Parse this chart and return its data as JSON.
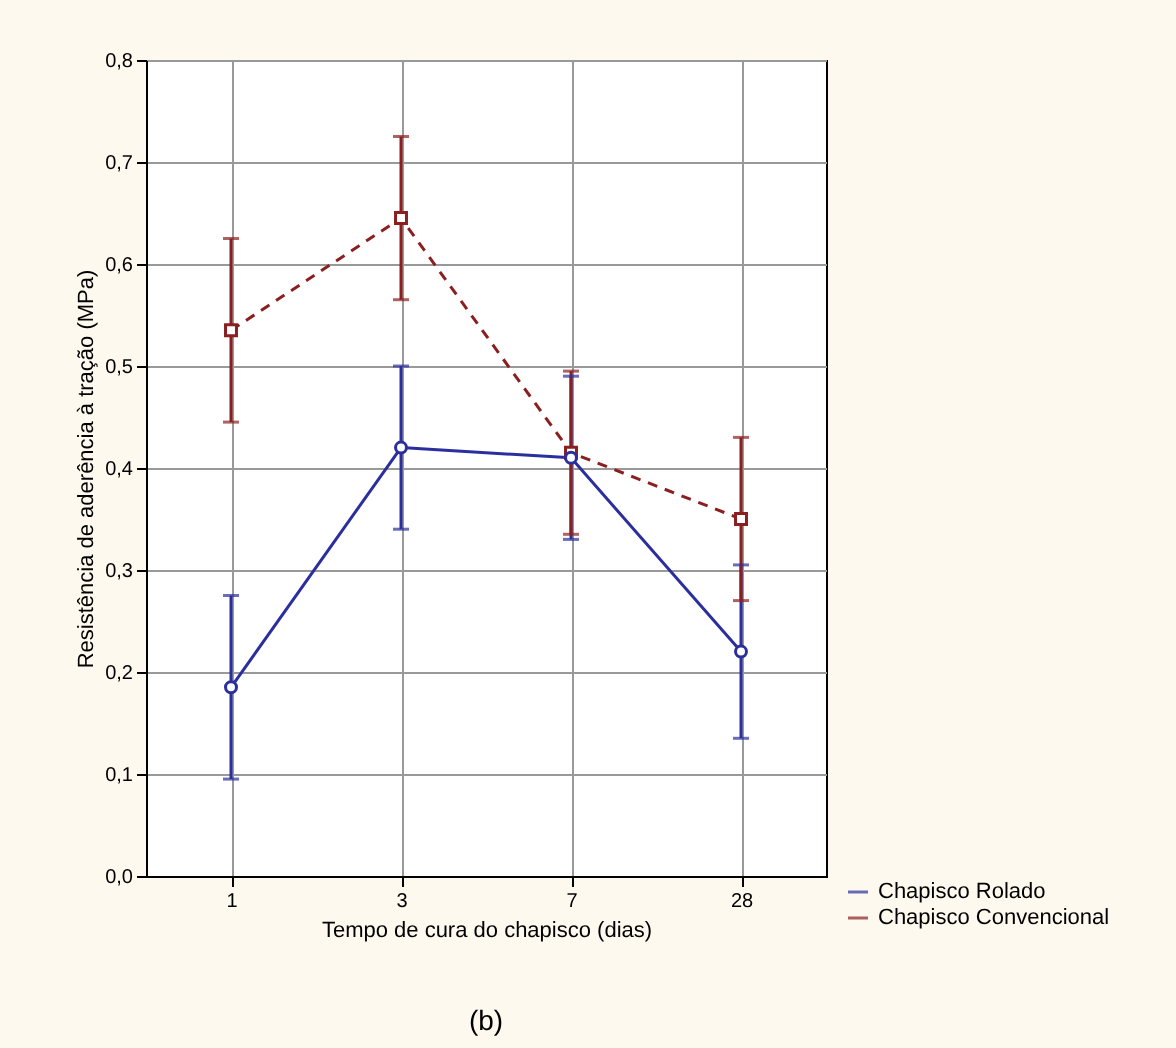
{
  "chart_data": {
    "type": "line",
    "xlabel": "Tempo de cura do chapisco (dias)",
    "ylabel": "Resistência de aderência à tração (MPa)",
    "categories": [
      "1",
      "3",
      "7",
      "28"
    ],
    "series": [
      {
        "name": "Chapisco Rolado",
        "color": "#2b2f9e",
        "marker": "circle",
        "line_style": "solid",
        "values": [
          0.185,
          0.42,
          0.41,
          0.22
        ],
        "errors": [
          0.09,
          0.08,
          0.08,
          0.085
        ]
      },
      {
        "name": "Chapisco Convencional",
        "color": "#8b1f1f",
        "marker": "square",
        "line_style": "dashed",
        "values": [
          0.535,
          0.645,
          0.415,
          0.35
        ],
        "errors": [
          0.09,
          0.08,
          0.08,
          0.08
        ]
      }
    ],
    "ylim": [
      0,
      0.8
    ],
    "yticks": [
      {
        "value": 0,
        "label": "0,0"
      },
      {
        "value": 0.1,
        "label": "0,1"
      },
      {
        "value": 0.2,
        "label": "0,2"
      },
      {
        "value": 0.3,
        "label": "0,3"
      },
      {
        "value": 0.4,
        "label": "0,4"
      },
      {
        "value": 0.5,
        "label": "0,5"
      },
      {
        "value": 0.6,
        "label": "0,6"
      },
      {
        "value": 0.7,
        "label": "0,7"
      },
      {
        "value": 0.8,
        "label": "0,8"
      }
    ],
    "grid": true,
    "legend": "bottom right",
    "annotations": [
      "(b)"
    ]
  }
}
